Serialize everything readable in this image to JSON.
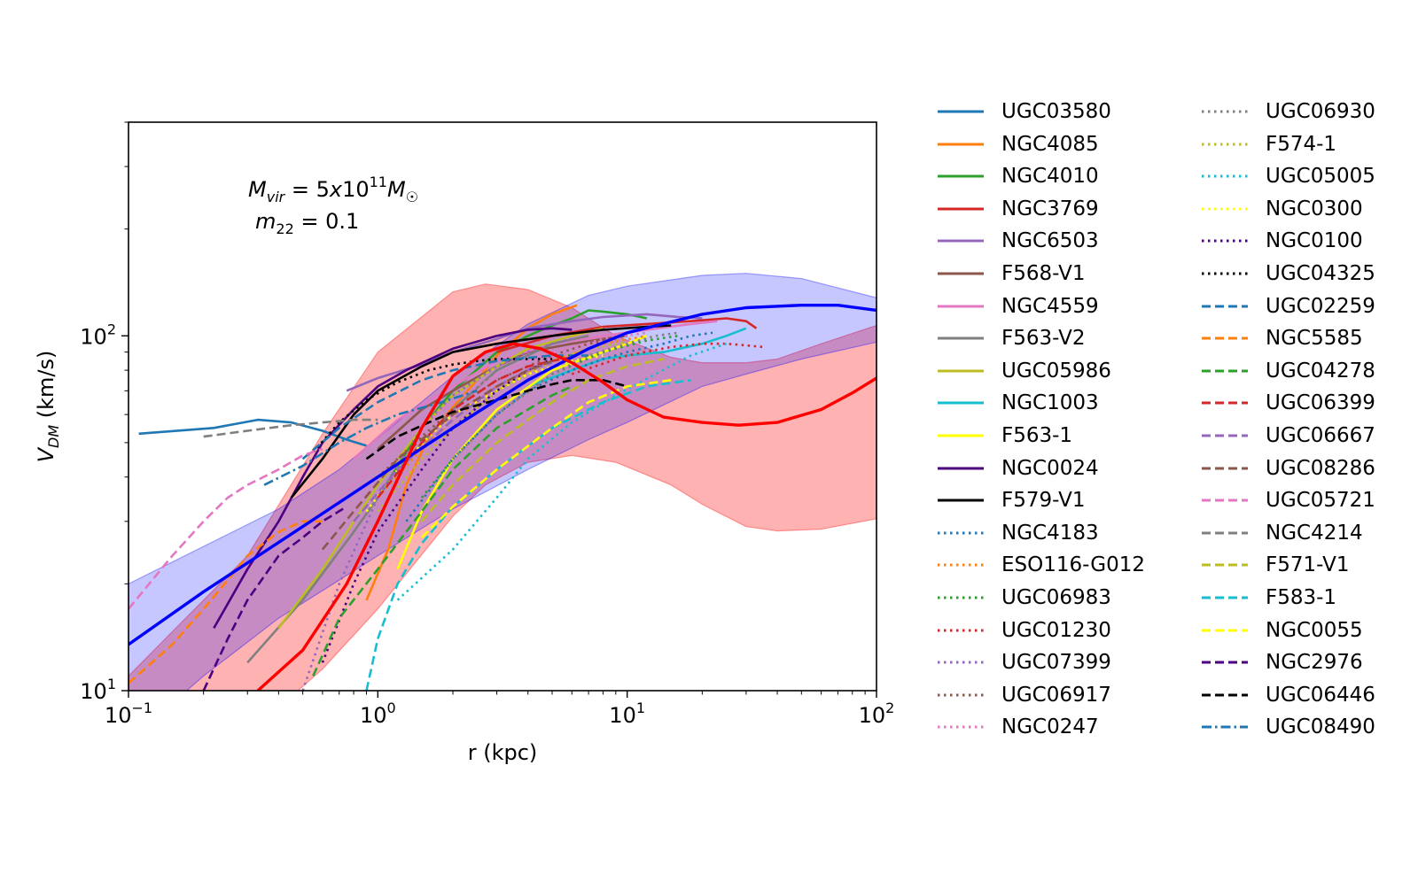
{
  "chart_data": {
    "type": "line",
    "title": "",
    "xlabel": "r (kpc)",
    "ylabel": "V_DM (km/s)",
    "xscale": "log",
    "yscale": "log",
    "xlim": [
      0.1,
      100
    ],
    "ylim": [
      10,
      400
    ],
    "x_ticks": [
      {
        "value": 0.1,
        "base": "10",
        "exp": "−1"
      },
      {
        "value": 1,
        "base": "10",
        "exp": "0"
      },
      {
        "value": 10,
        "base": "10",
        "exp": "1"
      },
      {
        "value": 100,
        "base": "10",
        "exp": "2"
      }
    ],
    "y_ticks": [
      {
        "value": 10,
        "base": "10",
        "exp": "1"
      },
      {
        "value": 100,
        "base": "10",
        "exp": "2"
      }
    ],
    "grid": false,
    "legend_position": "right, outside plot, two columns",
    "annotation_line1": "M_vir = 5x10^11 M_sun",
    "annotation_line2": "m_22 = 0.1",
    "bands": [
      {
        "color": "#ff0000",
        "opacity": 0.3,
        "x": [
          0.1,
          0.3,
          0.6,
          1,
          2,
          2.7,
          4,
          6,
          9,
          15,
          20,
          30,
          40,
          60,
          100
        ],
        "lower": [
          5,
          7.5,
          11.5,
          17,
          31,
          38,
          44,
          46,
          44,
          38,
          33.5,
          29,
          28.2,
          28.5,
          30.5
        ],
        "upper": [
          11,
          24,
          53,
          90,
          133,
          140,
          135,
          120,
          100,
          87,
          84,
          84,
          86,
          95,
          107
        ]
      },
      {
        "color": "#0000ff",
        "opacity": 0.22,
        "x": [
          0.1,
          0.2,
          0.4,
          0.7,
          1,
          2,
          4,
          7,
          10,
          20,
          30,
          50,
          100
        ],
        "lower": [
          7.2,
          11,
          16,
          20.5,
          24,
          32.5,
          42,
          51,
          57,
          72,
          78,
          86,
          96
        ],
        "upper": [
          20,
          25.5,
          32.5,
          42,
          51.5,
          77,
          108,
          130,
          138,
          148,
          150,
          145,
          128
        ]
      }
    ],
    "series": [
      {
        "name": "UGC03580",
        "color": "#1f77b4",
        "style": "solid",
        "x": [
          0.11,
          0.22,
          0.33,
          0.45,
          0.6,
          0.75,
          0.9
        ],
        "y": [
          53,
          55,
          58,
          57,
          54,
          51,
          49
        ]
      },
      {
        "name": "NGC4085",
        "color": "#ff7f0e",
        "style": "solid",
        "x": [
          0.9,
          1.1,
          1.3,
          1.6,
          2,
          2.5,
          3,
          4,
          5,
          6.3
        ],
        "y": [
          18,
          25,
          38,
          52,
          63,
          75,
          88,
          105,
          115,
          122
        ]
      },
      {
        "name": "NGC4010",
        "color": "#2ca02c",
        "style": "solid",
        "x": [
          1,
          1.5,
          2,
          3,
          4,
          5,
          6,
          7,
          8,
          10,
          12
        ],
        "y": [
          35,
          55,
          70,
          90,
          100,
          107,
          112,
          118,
          117,
          115,
          112
        ]
      },
      {
        "name": "NGC3769",
        "color": "#d62728",
        "style": "solid",
        "x": [
          3,
          5,
          8,
          12,
          18,
          25,
          30,
          33
        ],
        "y": [
          90,
          100,
          106,
          108,
          110,
          112,
          110,
          105
        ]
      },
      {
        "name": "NGC6503",
        "color": "#9467bd",
        "style": "solid",
        "x": [
          0.75,
          1,
          1.5,
          2,
          3,
          4,
          6,
          8,
          12,
          16,
          20
        ],
        "y": [
          70,
          76,
          83,
          90,
          98,
          105,
          110,
          113,
          115,
          113,
          112
        ]
      },
      {
        "name": "F568-V1",
        "color": "#8c564b",
        "style": "solid",
        "x": [
          1,
          1.5,
          2,
          3,
          4,
          6,
          8,
          10
        ],
        "y": [
          48,
          62,
          70,
          82,
          90,
          95,
          98,
          100
        ]
      },
      {
        "name": "NGC4559",
        "color": "#e377c2",
        "style": "solid",
        "x": [
          0.8,
          1.2,
          2,
          3,
          5,
          8,
          12,
          18,
          23
        ],
        "y": [
          45,
          58,
          72,
          85,
          95,
          100,
          104,
          108,
          110
        ]
      },
      {
        "name": "F563-V2",
        "color": "#7f7f7f",
        "style": "solid",
        "x": [
          0.3,
          0.5,
          0.8,
          1.2,
          2,
          3,
          5,
          7
        ],
        "y": [
          12,
          18,
          28,
          42,
          62,
          80,
          95,
          100
        ]
      },
      {
        "name": "UGC05986",
        "color": "#bcbd22",
        "style": "solid",
        "x": [
          0.4,
          0.6,
          1,
          1.5,
          2,
          3,
          4,
          6,
          8
        ],
        "y": [
          15,
          22,
          38,
          55,
          68,
          82,
          92,
          100,
          105
        ]
      },
      {
        "name": "NGC1003",
        "color": "#17becf",
        "style": "solid",
        "x": [
          4,
          6,
          8,
          10,
          14,
          20,
          25,
          30
        ],
        "y": [
          72,
          80,
          86,
          88,
          90,
          95,
          100,
          105
        ]
      },
      {
        "name": "F563-1",
        "color": "#ffff00",
        "style": "solid",
        "x": [
          1.2,
          1.5,
          2,
          3,
          5,
          8,
          10,
          12
        ],
        "y": [
          22,
          32,
          45,
          62,
          80,
          90,
          95,
          100
        ]
      },
      {
        "name": "NGC0024",
        "color": "#4b0082",
        "style": "solid",
        "x": [
          0.22,
          0.3,
          0.4,
          0.5,
          0.6,
          0.8,
          1,
          1.3,
          2,
          3,
          4,
          5,
          6
        ],
        "y": [
          15,
          22,
          30,
          40,
          50,
          62,
          72,
          80,
          92,
          100,
          104,
          105,
          104
        ]
      },
      {
        "name": "F579-V1",
        "color": "#000000",
        "style": "solid",
        "x": [
          0.45,
          0.6,
          0.8,
          1,
          1.5,
          2,
          3,
          5,
          8,
          12,
          15
        ],
        "y": [
          35,
          45,
          60,
          70,
          82,
          90,
          95,
          100,
          104,
          106,
          107
        ]
      },
      {
        "name": "NGC4183",
        "color": "#1f77b4",
        "style": "dotted",
        "x": [
          1.3,
          2,
          3,
          4,
          6,
          8,
          10,
          14,
          18,
          22
        ],
        "y": [
          30,
          45,
          60,
          70,
          80,
          86,
          90,
          95,
          100,
          102
        ]
      },
      {
        "name": "ESO116-G012",
        "color": "#ff7f0e",
        "style": "dotted",
        "x": [
          1,
          1.5,
          2,
          3,
          5,
          8,
          12
        ],
        "y": [
          35,
          48,
          58,
          72,
          85,
          95,
          100
        ]
      },
      {
        "name": "UGC06983",
        "color": "#2ca02c",
        "style": "dotted",
        "x": [
          1.5,
          2,
          3,
          5,
          8,
          12,
          16
        ],
        "y": [
          35,
          45,
          60,
          78,
          90,
          97,
          100
        ]
      },
      {
        "name": "UGC01230",
        "color": "#d62728",
        "style": "dotted",
        "x": [
          6,
          10,
          15,
          20,
          25,
          30,
          35
        ],
        "y": [
          78,
          88,
          93,
          95,
          95,
          94,
          93
        ]
      },
      {
        "name": "UGC07399",
        "color": "#9467bd",
        "style": "dotted",
        "x": [
          0.5,
          0.7,
          1,
          1.5,
          2,
          3,
          4,
          5,
          6
        ],
        "y": [
          10,
          20,
          35,
          55,
          68,
          82,
          90,
          95,
          98
        ]
      },
      {
        "name": "UGC06917",
        "color": "#8c564b",
        "style": "dotted",
        "x": [
          1,
          1.5,
          2,
          3,
          5,
          7,
          9
        ],
        "y": [
          40,
          52,
          62,
          75,
          88,
          95,
          98
        ]
      },
      {
        "name": "NGC0247",
        "color": "#e377c2",
        "style": "dotted",
        "x": [
          0.5,
          0.8,
          1.2,
          2,
          3,
          5,
          8,
          12
        ],
        "y": [
          28,
          38,
          50,
          65,
          78,
          90,
          98,
          102
        ]
      },
      {
        "name": "UGC06930",
        "color": "#7f7f7f",
        "style": "dotted",
        "x": [
          2,
          3,
          5,
          7,
          10,
          13,
          16
        ],
        "y": [
          45,
          60,
          78,
          88,
          95,
          100,
          102
        ]
      },
      {
        "name": "F574-1",
        "color": "#bcbd22",
        "style": "dotted",
        "x": [
          1,
          1.5,
          2,
          3,
          5,
          7,
          10
        ],
        "y": [
          32,
          45,
          55,
          70,
          85,
          92,
          96
        ]
      },
      {
        "name": "UGC05005",
        "color": "#17becf",
        "style": "dotted",
        "x": [
          1.2,
          2,
          3,
          4,
          6,
          9,
          13,
          18,
          25
        ],
        "y": [
          18,
          25,
          35,
          45,
          57,
          68,
          78,
          88,
          95
        ]
      },
      {
        "name": "NGC0300",
        "color": "#ffff00",
        "style": "dotted",
        "x": [
          0.9,
          1.2,
          1.6,
          2,
          3,
          4,
          6,
          8
        ],
        "y": [
          32,
          42,
          52,
          60,
          70,
          78,
          85,
          88
        ]
      },
      {
        "name": "NGC0100",
        "color": "#4b0082",
        "style": "dotted",
        "x": [
          0.6,
          0.8,
          1,
          1.5,
          2,
          3,
          4,
          5
        ],
        "y": [
          12,
          20,
          28,
          42,
          55,
          70,
          80,
          86
        ]
      },
      {
        "name": "UGC04325",
        "color": "#000000",
        "style": "dotted",
        "x": [
          0.55,
          0.7,
          0.9,
          1.2,
          1.6,
          2,
          2.5,
          3,
          4,
          5
        ],
        "y": [
          47,
          57,
          66,
          74,
          80,
          83,
          85,
          86,
          86,
          86
        ]
      },
      {
        "name": "UGC02259",
        "color": "#1f77b4",
        "style": "dashed",
        "x": [
          0.5,
          0.7,
          1,
          1.5,
          2,
          3,
          5,
          7
        ],
        "y": [
          45,
          55,
          65,
          75,
          80,
          85,
          88,
          88
        ]
      },
      {
        "name": "NGC5585",
        "color": "#ff7f0e",
        "style": "dashed",
        "x": [
          0.1,
          0.15,
          0.2,
          0.25,
          0.3,
          0.4,
          0.5,
          0.6
        ],
        "y": [
          10.5,
          13.5,
          17,
          20.5,
          24,
          28,
          30,
          30
        ]
      },
      {
        "name": "UGC04278",
        "color": "#2ca02c",
        "style": "dashed",
        "x": [
          0.55,
          0.7,
          1,
          1.5,
          2,
          3,
          4,
          5,
          6
        ],
        "y": [
          11,
          16,
          22,
          32,
          42,
          55,
          62,
          68,
          72
        ]
      },
      {
        "name": "UGC06399",
        "color": "#d62728",
        "style": "dashed",
        "x": [
          1,
          1.5,
          2,
          3,
          4,
          5,
          6
        ],
        "y": [
          35,
          50,
          62,
          75,
          82,
          85,
          87
        ]
      },
      {
        "name": "UGC06667",
        "color": "#9467bd",
        "style": "dashed",
        "x": [
          0.8,
          1.2,
          2,
          3,
          4,
          5
        ],
        "y": [
          30,
          42,
          58,
          72,
          80,
          84
        ]
      },
      {
        "name": "UGC08286",
        "color": "#8c564b",
        "style": "dashed",
        "x": [
          0.6,
          0.8,
          1.2,
          2,
          3,
          4,
          5
        ],
        "y": [
          25,
          32,
          45,
          60,
          72,
          80,
          85
        ]
      },
      {
        "name": "UGC05721",
        "color": "#e377c2",
        "style": "dashed",
        "x": [
          0.1,
          0.15,
          0.2,
          0.25,
          0.3,
          0.4,
          0.5,
          0.6
        ],
        "y": [
          17,
          24,
          30,
          35,
          38,
          42,
          46,
          48
        ]
      },
      {
        "name": "NGC4214",
        "color": "#7f7f7f",
        "style": "dashed",
        "x": [
          0.2,
          0.3,
          0.45,
          0.6,
          0.8,
          1
        ],
        "y": [
          52,
          54,
          56,
          57,
          58,
          58
        ]
      },
      {
        "name": "F571-V1",
        "color": "#bcbd22",
        "style": "dashed",
        "x": [
          1.5,
          2,
          3,
          5,
          7,
          10,
          14
        ],
        "y": [
          30,
          38,
          50,
          65,
          75,
          82,
          86
        ]
      },
      {
        "name": "F583-1",
        "color": "#17becf",
        "style": "dashed",
        "x": [
          0.9,
          1,
          1.2,
          1.5,
          2,
          3,
          5,
          8,
          12,
          18
        ],
        "y": [
          10,
          14,
          20,
          26,
          33,
          42,
          55,
          65,
          72,
          75
        ]
      },
      {
        "name": "NGC0055",
        "color": "#ffff00",
        "style": "dashed",
        "x": [
          1.5,
          2,
          3,
          5,
          7,
          10,
          15
        ],
        "y": [
          27,
          33,
          42,
          55,
          65,
          72,
          75
        ]
      },
      {
        "name": "NGC2976",
        "color": "#4b0082",
        "style": "dashed",
        "x": [
          0.2,
          0.25,
          0.3,
          0.4,
          0.5,
          0.6,
          0.75
        ],
        "y": [
          10,
          14,
          18,
          24,
          27,
          30,
          33
        ]
      },
      {
        "name": "UGC06446",
        "color": "#000000",
        "style": "dashed",
        "x": [
          0.9,
          1.2,
          1.6,
          2,
          3,
          4,
          5,
          6,
          8,
          10
        ],
        "y": [
          45,
          52,
          57,
          61,
          66,
          70,
          73,
          75,
          75,
          72
        ]
      },
      {
        "name": "UGC08490",
        "color": "#1f77b4",
        "style": "dashdot",
        "x": [
          0.35,
          0.5,
          0.7,
          0.9,
          1.2,
          1.8,
          2.5
        ],
        "y": [
          38,
          43,
          50,
          55,
          60,
          65,
          70
        ]
      },
      {
        "name": "",
        "color": "#0000ff",
        "style": "thick",
        "x": [
          0.1,
          0.2,
          0.5,
          1,
          2,
          4,
          7,
          10,
          20,
          30,
          50,
          70,
          100
        ],
        "y": [
          13.5,
          19,
          29,
          40,
          55,
          75,
          92,
          102,
          115,
          120,
          122,
          122,
          118
        ]
      },
      {
        "name": "",
        "color": "#ff0000",
        "style": "thick",
        "x": [
          0.33,
          0.5,
          0.75,
          1,
          1.5,
          2,
          2.7,
          3.5,
          4.5,
          6,
          8,
          10,
          14,
          20,
          28,
          40,
          60,
          80,
          100
        ],
        "y": [
          10,
          13,
          20,
          30,
          55,
          77,
          90,
          95,
          92,
          84,
          74,
          66,
          59,
          57,
          56,
          57,
          62,
          69,
          76
        ]
      }
    ]
  }
}
